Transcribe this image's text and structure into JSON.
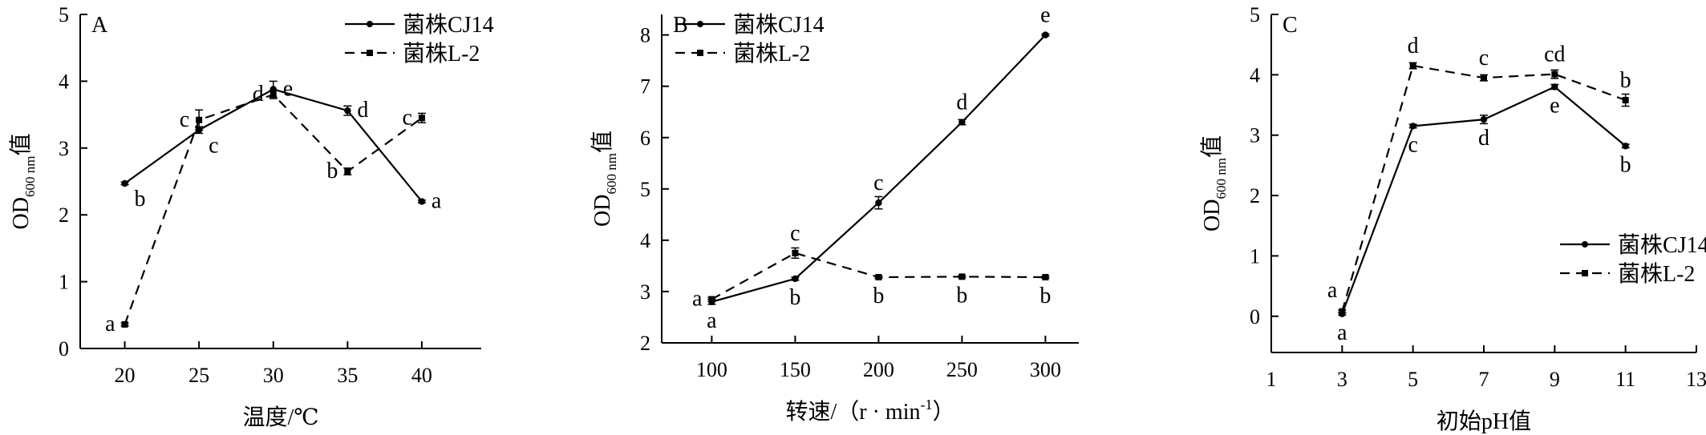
{
  "chart_data": [
    {
      "type": "line",
      "panel_label": "A",
      "xlabel": "温度/℃",
      "ylabel": "OD600 nm值",
      "ylabel_main": "OD",
      "ylabel_sub": "600 nm",
      "ylabel_suffix": "值",
      "xlim": [
        17,
        44
      ],
      "ylim": [
        0,
        5
      ],
      "xticks": [
        20,
        25,
        30,
        35,
        40
      ],
      "yticks": [
        0,
        1,
        2,
        3,
        4,
        5
      ],
      "legend_position": "top-right",
      "series": [
        {
          "name": "菌株CJ14",
          "style": "solid",
          "marker": "circle",
          "x": [
            20,
            25,
            30,
            35,
            40
          ],
          "y": [
            2.47,
            3.27,
            3.88,
            3.56,
            2.2
          ],
          "err": [
            0.02,
            0.05,
            0.12,
            0.07,
            0.02
          ],
          "labels": [
            "b",
            "c",
            "e",
            "d",
            "a"
          ],
          "label_pos": [
            "below-right",
            "below-right",
            "right",
            "right",
            "right"
          ]
        },
        {
          "name": "菌株L-2",
          "style": "dashed",
          "marker": "square",
          "x": [
            20,
            25,
            30,
            35,
            40
          ],
          "y": [
            0.36,
            3.42,
            3.8,
            2.65,
            3.45
          ],
          "err": [
            0.02,
            0.15,
            0.06,
            0.05,
            0.07
          ],
          "labels": [
            "a",
            "c",
            "d",
            "b",
            "c"
          ],
          "label_pos": [
            "left",
            "left",
            "left",
            "left",
            "left"
          ]
        }
      ]
    },
    {
      "type": "line",
      "panel_label": "B",
      "xlabel": "转速/（r · min-1）",
      "xlabel_main": "转速/（r · min",
      "xlabel_sup": "-1",
      "xlabel_end": "）",
      "ylabel": "OD600 nm值",
      "ylabel_main": "OD",
      "ylabel_sub": "600 nm",
      "ylabel_suffix": "值",
      "xlim": [
        70,
        320
      ],
      "ylim": [
        2,
        8.4
      ],
      "xticks": [
        100,
        150,
        200,
        250,
        300
      ],
      "yticks": [
        2,
        3,
        4,
        5,
        6,
        7,
        8
      ],
      "legend_position": "top-left",
      "series": [
        {
          "name": "菌株CJ14",
          "style": "solid",
          "marker": "circle",
          "x": [
            100,
            150,
            200,
            250,
            300
          ],
          "y": [
            2.8,
            3.25,
            4.73,
            6.3,
            8.0
          ],
          "err": [
            0.05,
            0.03,
            0.12,
            0.05,
            0.02
          ],
          "labels": [
            "a",
            "b",
            "c",
            "d",
            "e"
          ],
          "label_pos": [
            "below",
            "below",
            "above",
            "above",
            "above"
          ]
        },
        {
          "name": "菌株L-2",
          "style": "dashed",
          "marker": "square",
          "x": [
            100,
            150,
            200,
            250,
            300
          ],
          "y": [
            2.85,
            3.75,
            3.28,
            3.29,
            3.28
          ],
          "err": [
            0.04,
            0.1,
            0.02,
            0.02,
            0.02
          ],
          "labels": [
            "a",
            "c",
            "b",
            "b",
            "b"
          ],
          "label_pos": [
            "left",
            "above",
            "below",
            "below",
            "below"
          ]
        }
      ]
    },
    {
      "type": "line",
      "panel_label": "C",
      "xlabel": "初始pH值",
      "ylabel": "OD600 nm值",
      "ylabel_main": "OD",
      "ylabel_sub": "600 nm",
      "ylabel_suffix": "值",
      "xlim": [
        1,
        13
      ],
      "ylim": [
        -0.6,
        5
      ],
      "xticks": [
        1,
        3,
        5,
        7,
        9,
        11,
        13
      ],
      "yticks": [
        0,
        1,
        2,
        3,
        4,
        5
      ],
      "legend_position": "bottom-right",
      "series": [
        {
          "name": "菌株CJ14",
          "style": "solid",
          "marker": "circle",
          "x": [
            3,
            5,
            7,
            9,
            11
          ],
          "y": [
            0.04,
            3.15,
            3.26,
            3.8,
            2.82
          ],
          "err": [
            0.02,
            0.03,
            0.07,
            0.04,
            0.03
          ],
          "labels": [
            "a",
            "c",
            "d",
            "e",
            "b"
          ],
          "label_pos": [
            "below",
            "below",
            "below",
            "below",
            "below"
          ]
        },
        {
          "name": "菌株L-2",
          "style": "dashed",
          "marker": "square",
          "x": [
            3,
            5,
            7,
            9,
            11
          ],
          "y": [
            0.08,
            4.15,
            3.95,
            4.01,
            3.58
          ],
          "err": [
            0.02,
            0.05,
            0.05,
            0.07,
            0.1
          ],
          "labels": [
            "a",
            "d",
            "c",
            "cd",
            "b"
          ],
          "label_pos": [
            "above-left",
            "above",
            "above",
            "above",
            "above"
          ]
        }
      ]
    }
  ]
}
